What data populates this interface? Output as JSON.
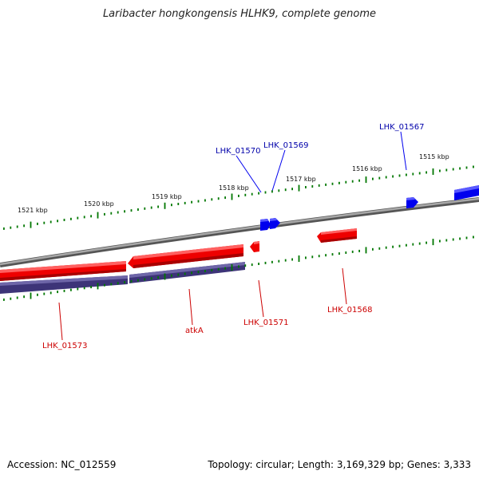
{
  "title": "Laribacter hongkongensis HLHK9, complete genome",
  "footer": {
    "accession": "Accession: NC_012559",
    "topology": "Topology: circular; Length: 3,169,329 bp; Genes: 3,333"
  },
  "colors": {
    "backbone": "#808080",
    "forward_gene": "#0000ee",
    "reverse_gene": "#ee0000",
    "cds_track": "#3d3478",
    "tick": "#007700",
    "forward_label": "#0000aa",
    "reverse_label": "#cc0000"
  },
  "scale_labels": [
    "1521 kbp",
    "1520 kbp",
    "1519 kbp",
    "1518 kbp",
    "1517 kbp",
    "1516 kbp",
    "1515 kbp"
  ],
  "genes_forward": [
    {
      "label": "LHK_01570"
    },
    {
      "label": "LHK_01569"
    },
    {
      "label": "LHK_01567"
    }
  ],
  "genes_reverse": [
    {
      "label": "LHK_01573"
    },
    {
      "label": "atkA"
    },
    {
      "label": "LHK_01571"
    },
    {
      "label": "LHK_01568"
    }
  ]
}
